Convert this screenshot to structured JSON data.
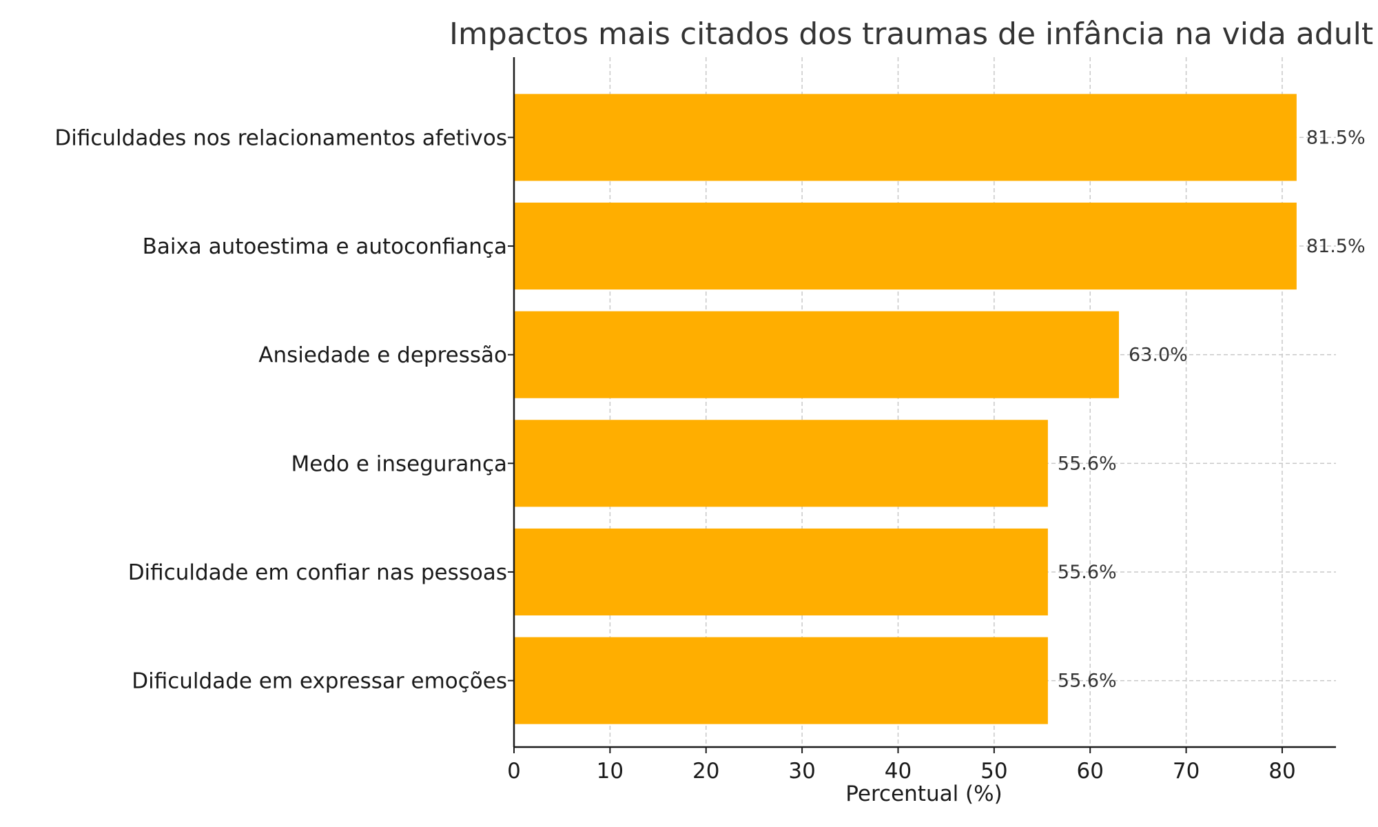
{
  "chart_data": {
    "type": "bar",
    "orientation": "horizontal",
    "title": "Impactos mais citados dos traumas de infância na vida adult",
    "xlabel": "Percentual (%)",
    "ylabel": "",
    "categories": [
      "Dificuldades nos relacionamentos afetivos",
      "Baixa autoestima e autoconfiança",
      "Ansiedade e depressão",
      "Medo e insegurança",
      "Dificuldade em confiar nas pessoas",
      "Dificuldade em expressar emoções"
    ],
    "values": [
      81.5,
      81.5,
      63.0,
      55.6,
      55.6,
      55.6
    ],
    "data_labels": [
      "81.5%",
      "81.5%",
      "63.0%",
      "55.6%",
      "55.6%",
      "55.6%"
    ],
    "xticks": [
      0,
      10,
      20,
      30,
      40,
      50,
      60,
      70,
      80
    ],
    "xlim": [
      0,
      85.6
    ],
    "grid": true,
    "bar_color": "#FFAE00",
    "grid_color": "#c8c8c8"
  }
}
